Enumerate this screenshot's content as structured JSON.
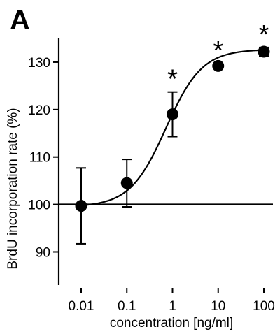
{
  "panel_label": "A",
  "chart_data": {
    "type": "scatter",
    "title": "",
    "xlabel": "concentration [ng/ml]",
    "ylabel": "BrdU incorporation rate (%)",
    "x_scale": "log",
    "x_ticks": [
      "0.01",
      "0.1",
      "1",
      "10",
      "100"
    ],
    "y_ticks": [
      "90",
      "100",
      "110",
      "120",
      "130"
    ],
    "ylim": [
      83,
      135
    ],
    "xlim": [
      0.01,
      100
    ],
    "reference_line_y": 100,
    "grid": false,
    "legend": "none",
    "series": [
      {
        "x": [
          0.01,
          0.1,
          1,
          10,
          100
        ],
        "y": [
          99.7,
          104.5,
          119.0,
          129.2,
          132.2
        ],
        "error": [
          8.0,
          5.0,
          4.7,
          0.5,
          0.9
        ]
      }
    ],
    "fit_curve": {
      "type": "sigmoidal",
      "bottom": 99.5,
      "top": 132.7,
      "ec50": 0.72,
      "hill": 1.1
    },
    "significance_marker": "*",
    "significant_x": [
      1,
      10,
      100
    ]
  }
}
